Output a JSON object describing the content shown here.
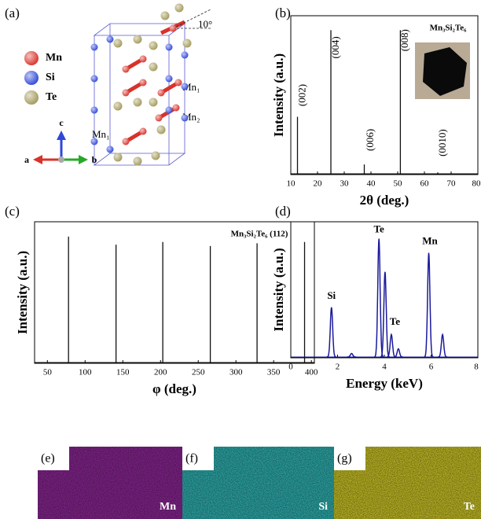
{
  "structure": {
    "panel": "(a)",
    "legend": [
      {
        "name": "Mn",
        "color": "#d8322a"
      },
      {
        "name": "Si",
        "color": "#2f48d8"
      },
      {
        "name": "Te",
        "color": "#a39a5a"
      }
    ],
    "axes": [
      "c",
      "a",
      "b"
    ],
    "angle": "10°",
    "sites": [
      "Mn₁",
      "Mn₂",
      "Mn₁"
    ]
  },
  "chart_data": [
    {
      "type": "stem",
      "panel": "(b)",
      "title": "Mn₃Si₂Te₆",
      "x_label": "2θ (deg.)",
      "y_label": "Intensity (a.u.)",
      "color": "#111111",
      "x": [
        12.5,
        25,
        37.5,
        51,
        65
      ],
      "values": [
        0.4,
        1.0,
        0.07,
        1.0,
        0.015
      ],
      "xlim": [
        10,
        80
      ],
      "xticks": [
        10,
        20,
        30,
        40,
        50,
        60,
        70,
        80
      ],
      "ylim": [
        0,
        1.1
      ],
      "annotations": [
        {
          "text": "(002)",
          "x": 14.5,
          "y": 0.55
        },
        {
          "text": "(004)",
          "x": 27,
          "y": 0.88
        },
        {
          "text": "(006)",
          "x": 40,
          "y": 0.24
        },
        {
          "text": "(008)",
          "x": 53,
          "y": 0.93
        },
        {
          "text": "(0010)",
          "x": 67,
          "y": 0.22
        }
      ]
    },
    {
      "type": "stem",
      "panel": "(c)",
      "title": "Mn₃Si₂Te₆ (112)",
      "x_label": "φ (deg.)",
      "y_label": "Intensity (a.u.)",
      "color": "#111111",
      "x": [
        78,
        141,
        203,
        266,
        328,
        391
      ],
      "values": [
        0.94,
        0.88,
        0.9,
        0.87,
        0.89,
        0.9
      ],
      "xlim": [
        33,
        404
      ],
      "xticks": [
        50,
        100,
        150,
        200,
        250,
        300,
        350,
        400
      ],
      "ylim": [
        0,
        1.05
      ],
      "annotations": []
    },
    {
      "type": "spectrum",
      "panel": "(d)",
      "x_label": "Energy (keV)",
      "y_label": "Intensity (a.u.)",
      "color": "#1a1a9c",
      "x": [
        1.74,
        2.6,
        3.77,
        4.03,
        4.3,
        4.6,
        5.9,
        6.49
      ],
      "values": [
        0.42,
        0.03,
        1.0,
        0.72,
        0.19,
        0.07,
        0.88,
        0.19
      ],
      "xlim": [
        0,
        8
      ],
      "xticks": [
        0,
        2,
        4,
        6,
        8
      ],
      "ylim": [
        0,
        1.15
      ],
      "annotations": [
        {
          "text": "Si",
          "x": 1.74,
          "y": 0.52
        },
        {
          "text": "Te",
          "x": 3.77,
          "y": 1.08
        },
        {
          "text": "Te",
          "x": 4.45,
          "y": 0.3
        },
        {
          "text": "Mn",
          "x": 5.95,
          "y": 0.98
        }
      ]
    }
  ],
  "maps": [
    {
      "panel": "(e)",
      "element": "Mn",
      "color": "#7b2283"
    },
    {
      "panel": "(f)",
      "element": "Si",
      "color": "#2a9c9c"
    },
    {
      "panel": "(g)",
      "element": "Te",
      "color": "#b3ad22"
    }
  ]
}
